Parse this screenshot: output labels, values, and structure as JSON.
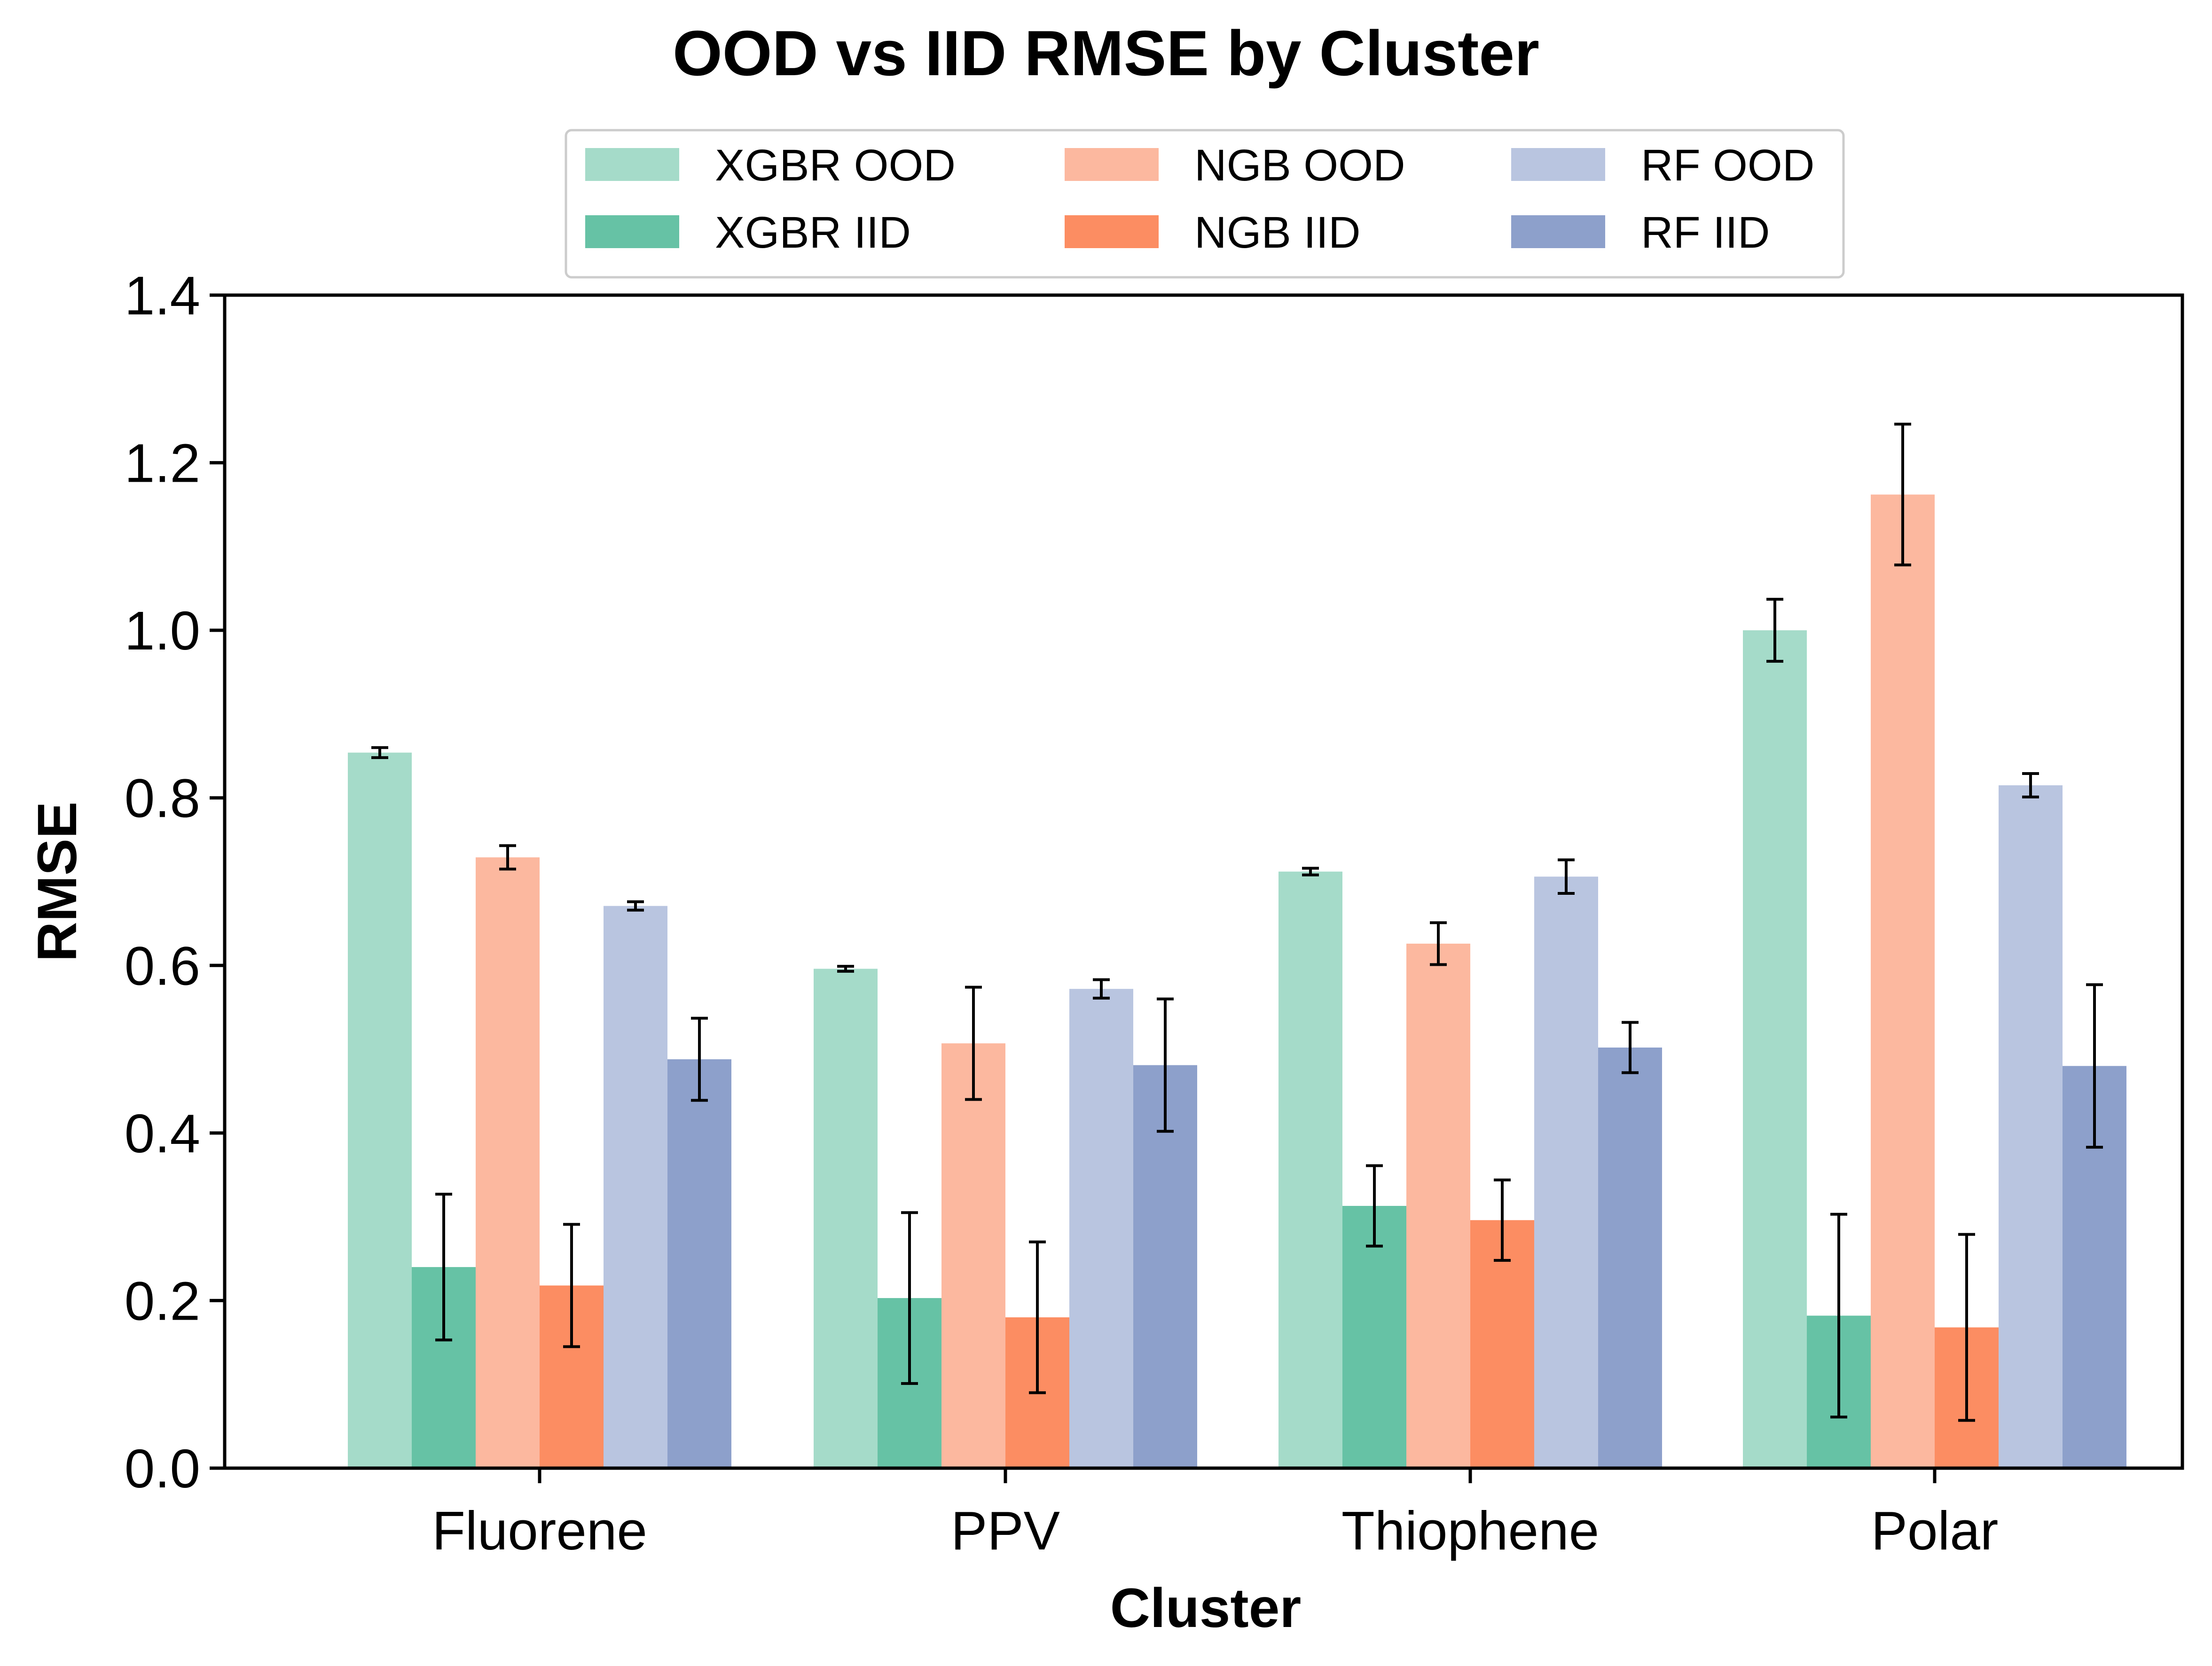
{
  "chart_data": {
    "type": "bar",
    "title": "OOD vs IID RMSE by Cluster",
    "xlabel": "Cluster",
    "ylabel": "RMSE",
    "ylim": [
      0,
      1.4
    ],
    "yticks": [
      "0.0",
      "0.2",
      "0.4",
      "0.6",
      "0.8",
      "1.0",
      "1.2",
      "1.4"
    ],
    "categories": [
      "Fluorene",
      "PPV",
      "Thiophene",
      "Polar"
    ],
    "legend_position": "top-center",
    "grid": false,
    "series": [
      {
        "name": "XGBR OOD",
        "color": "#a5dbc9",
        "values": [
          0.854,
          0.596,
          0.712,
          1.0
        ],
        "errors": [
          0.006,
          0.003,
          0.004,
          0.037
        ]
      },
      {
        "name": "XGBR IID",
        "color": "#66c2a5",
        "values": [
          0.24,
          0.203,
          0.313,
          0.182
        ],
        "errors": [
          0.087,
          0.102,
          0.048,
          0.121
        ]
      },
      {
        "name": "NGB OOD",
        "color": "#fcb89f",
        "values": [
          0.729,
          0.507,
          0.626,
          1.162
        ],
        "errors": [
          0.014,
          0.067,
          0.025,
          0.084
        ]
      },
      {
        "name": "NGB IID",
        "color": "#fc8d62",
        "values": [
          0.218,
          0.18,
          0.296,
          0.168
        ],
        "errors": [
          0.073,
          0.09,
          0.048,
          0.111
        ]
      },
      {
        "name": "RF OOD",
        "color": "#b9c5e0",
        "values": [
          0.671,
          0.572,
          0.706,
          0.815
        ],
        "errors": [
          0.005,
          0.011,
          0.02,
          0.014
        ]
      },
      {
        "name": "RF IID",
        "color": "#8da0cb",
        "values": [
          0.488,
          0.481,
          0.502,
          0.48
        ],
        "errors": [
          0.049,
          0.079,
          0.03,
          0.097
        ]
      }
    ]
  }
}
